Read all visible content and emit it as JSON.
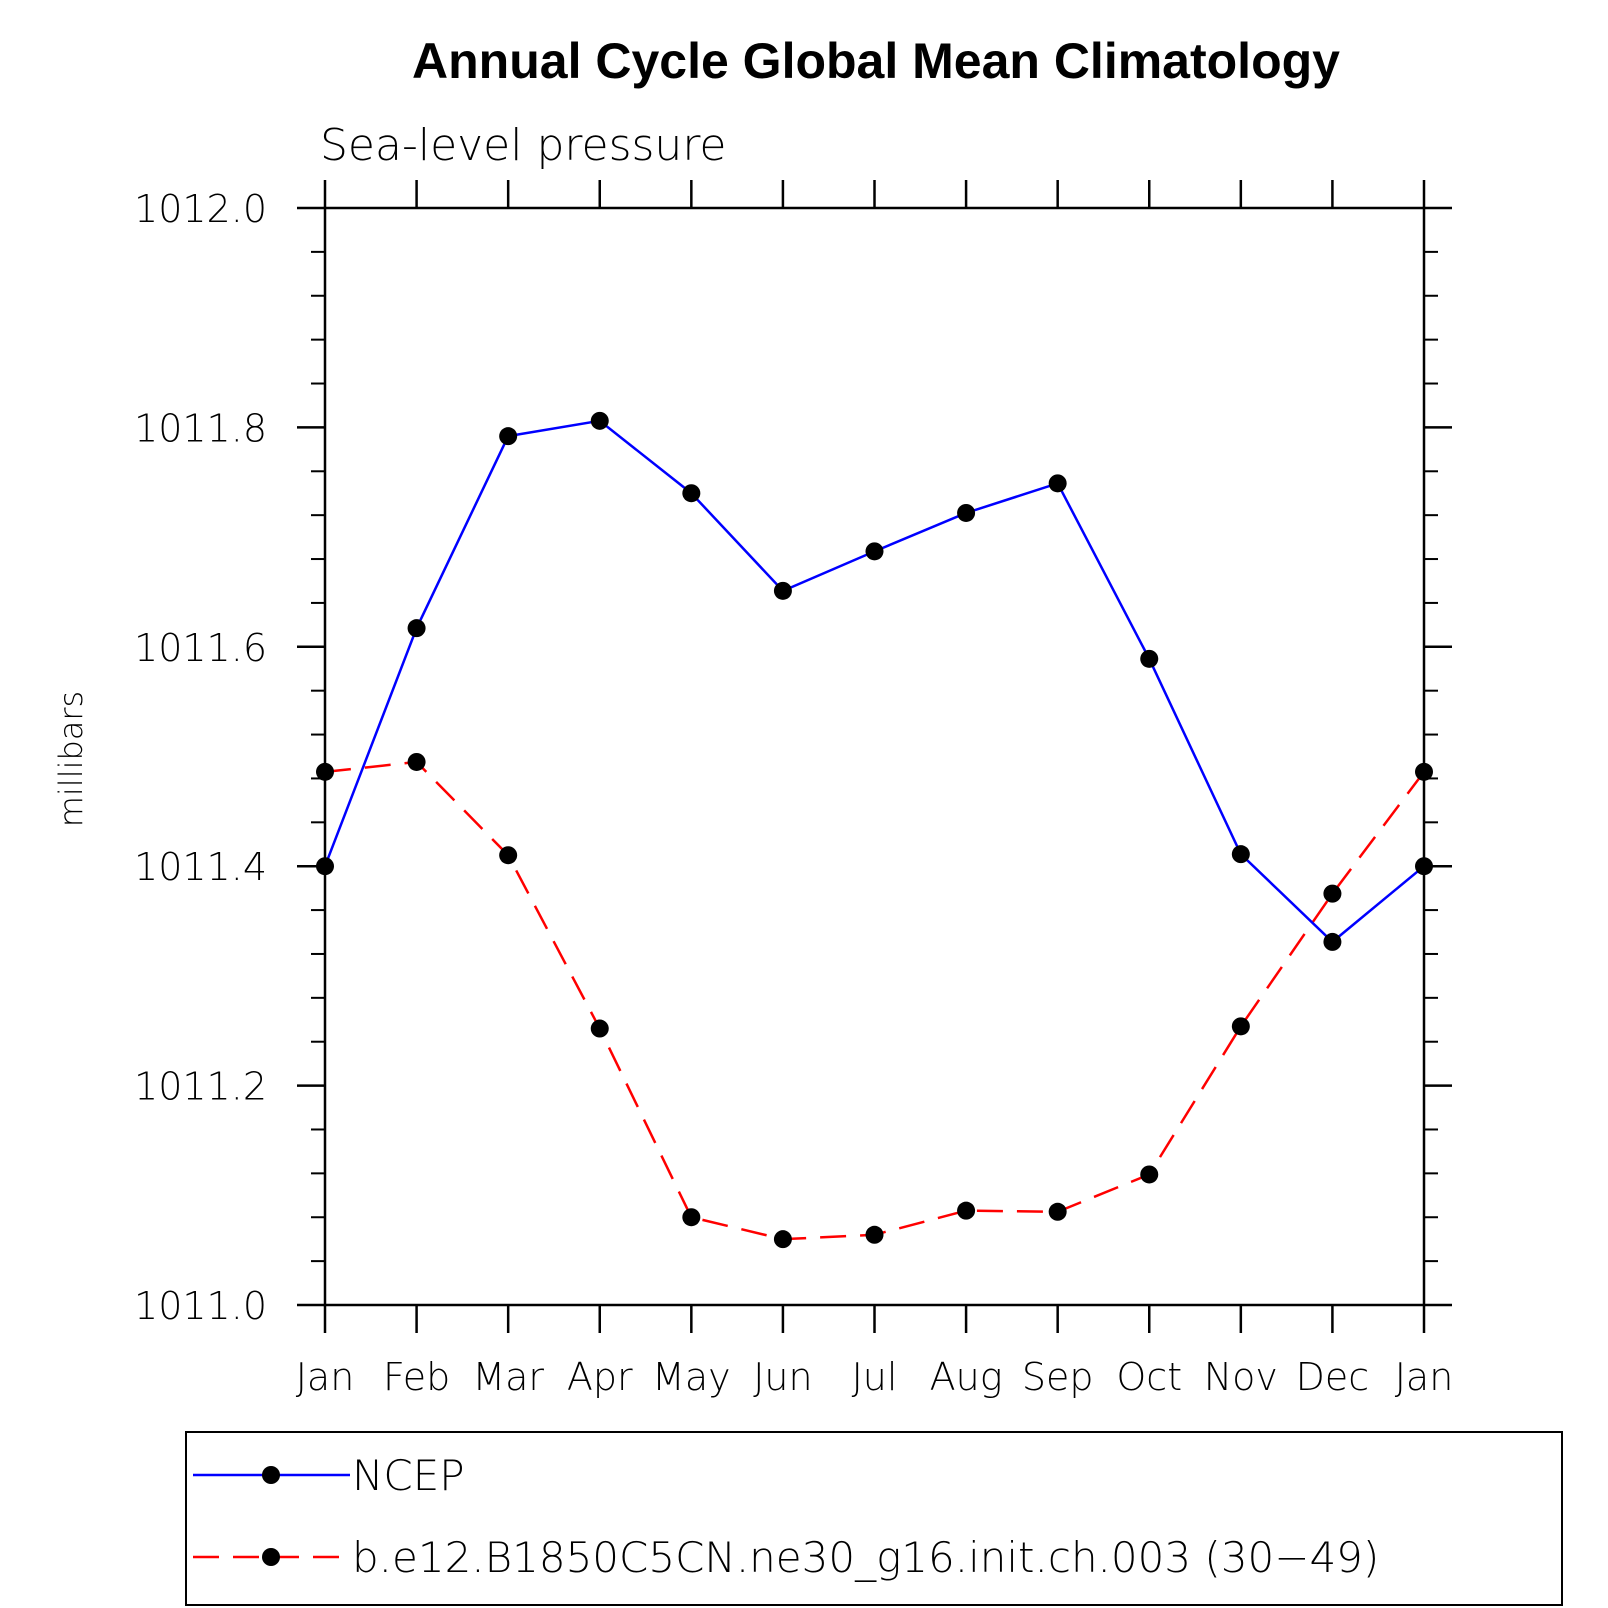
{
  "chart_data": {
    "type": "line",
    "title": "Annual Cycle Global Mean Climatology",
    "subtitle": "Sea-level pressure",
    "xlabel": "",
    "ylabel": "millibars",
    "categories": [
      "Jan",
      "Feb",
      "Mar",
      "Apr",
      "May",
      "Jun",
      "Jul",
      "Aug",
      "Sep",
      "Oct",
      "Nov",
      "Dec",
      "Jan"
    ],
    "ylim": [
      1011.0,
      1012.0
    ],
    "yticks": [
      "1011.0",
      "1011.2",
      "1011.4",
      "1011.6",
      "1011.8",
      "1012.0"
    ],
    "grid": false,
    "legend_position": "bottom",
    "series": [
      {
        "name": "NCEP",
        "color": "#0000ff",
        "style": "solid",
        "marker": "dot",
        "values": [
          1011.4,
          1011.617,
          1011.792,
          1011.806,
          1011.74,
          1011.651,
          1011.687,
          1011.722,
          1011.749,
          1011.589,
          1011.411,
          1011.331,
          1011.4
        ]
      },
      {
        "name": "b.e12.B1850C5CN.ne30_g16.init.ch.003 (30−49)",
        "color": "#ff0000",
        "style": "dashed",
        "marker": "dot",
        "values": [
          1011.486,
          1011.495,
          1011.41,
          1011.252,
          1011.08,
          1011.06,
          1011.064,
          1011.086,
          1011.085,
          1011.119,
          1011.254,
          1011.375,
          1011.486
        ]
      }
    ]
  }
}
